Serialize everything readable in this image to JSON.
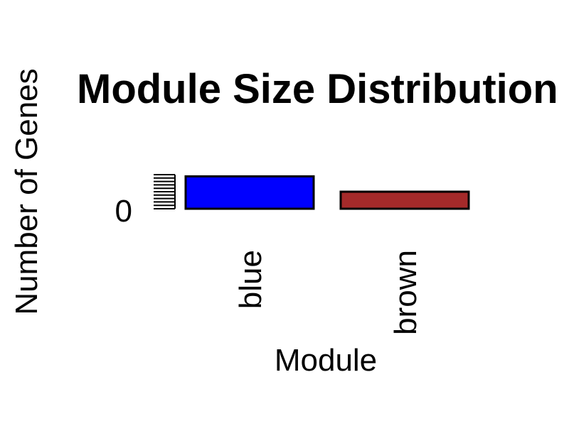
{
  "chart_data": {
    "type": "bar",
    "title": "Module Size Distribution",
    "xlabel": "Module",
    "ylabel": "Number of Genes",
    "categories": [
      "blue",
      "brown"
    ],
    "values": [
      95,
      50
    ],
    "colors": [
      "#0000ff",
      "#a52a2a"
    ],
    "y_tick_labels": [
      "0"
    ],
    "ylim": [
      0,
      100
    ],
    "grid": false,
    "legend": "none"
  }
}
